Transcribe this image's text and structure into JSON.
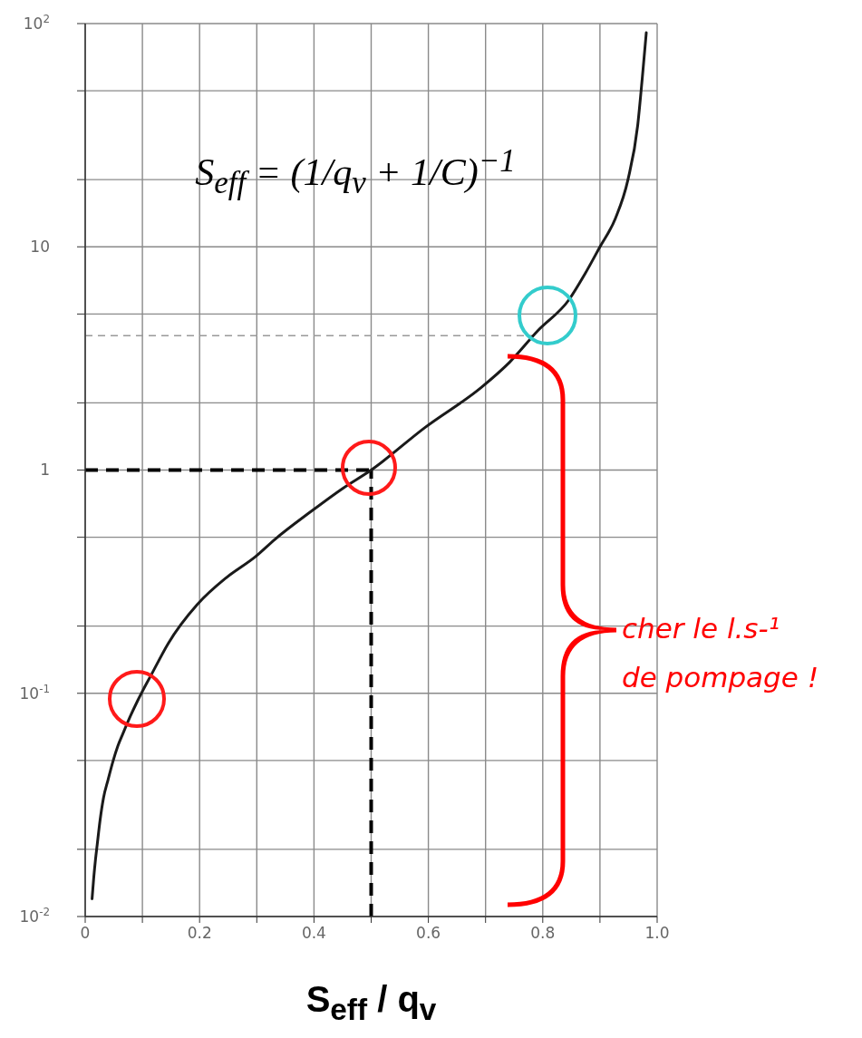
{
  "chart_data": {
    "type": "line",
    "xlabel": "S$_{eff}$ / q$_{v}$",
    "annotations": [
      "S$_{eff}$ = (1/q$_{v}$ + 1/C)$^{−1}$",
      "cher le l.s-¹ de pompage !"
    ],
    "x": [
      0.012,
      0.015,
      0.018,
      0.021,
      0.026,
      0.032,
      0.04,
      0.049,
      0.057,
      0.066,
      0.079,
      0.092,
      0.117,
      0.145,
      0.196,
      0.247,
      0.298,
      0.332,
      0.394,
      0.451,
      0.5,
      0.594,
      0.693,
      0.742,
      0.791,
      0.846,
      0.873,
      0.9,
      0.927,
      0.949,
      0.966,
      0.974,
      0.981
    ],
    "values": [
      0.012,
      0.015,
      0.018,
      0.021,
      0.027,
      0.034,
      0.041,
      0.05,
      0.058,
      0.066,
      0.079,
      0.093,
      0.123,
      0.167,
      0.25,
      0.33,
      0.41,
      0.49,
      0.65,
      0.83,
      1,
      1.55,
      2.35,
      3.04,
      4.2,
      5.8,
      7.5,
      10,
      13.4,
      20,
      35,
      57,
      91
    ],
    "color": "#1a1a1a",
    "log": "y",
    "xlim": [
      0,
      1
    ],
    "ylim": [
      0.01,
      100
    ],
    "xticks": [
      0,
      {
        "value": 0.1,
        "label": null
      },
      0.2,
      {
        "value": 0.3,
        "label": null
      },
      0.4,
      {
        "value": 0.5,
        "label": null
      },
      0.6,
      {
        "value": 0.7,
        "label": null
      },
      0.8,
      {
        "value": 0.9,
        "label": null
      },
      {
        "value": 1,
        "label": "1.0"
      }
    ],
    "yticks": [
      {
        "value": 0.01,
        "label": "10$^{-2}$"
      },
      {
        "value": 0.02,
        "label": null
      },
      {
        "value": 0.05,
        "label": null
      },
      {
        "value": 0.1,
        "label": "10$^{-1}$"
      },
      {
        "value": 0.2,
        "label": null
      },
      {
        "value": 0.5,
        "label": null
      },
      1,
      {
        "value": 2,
        "label": null
      },
      {
        "value": 5,
        "label": null
      },
      10,
      {
        "value": 20,
        "label": null
      },
      {
        "value": 50,
        "label": null
      },
      {
        "value": 100,
        "label": "10$^{2}$"
      }
    ],
    "grid": true,
    "ref_lines": [
      {
        "axis": "x",
        "value": 0.5,
        "color": "#000000",
        "line_style": "dashed"
      },
      {
        "axis": "y",
        "value": 1,
        "color": "#000000",
        "line_style": "dashed"
      },
      {
        "axis": "y",
        "value": 4,
        "color": "#999999",
        "line_style": "dashed"
      }
    ]
  }
}
